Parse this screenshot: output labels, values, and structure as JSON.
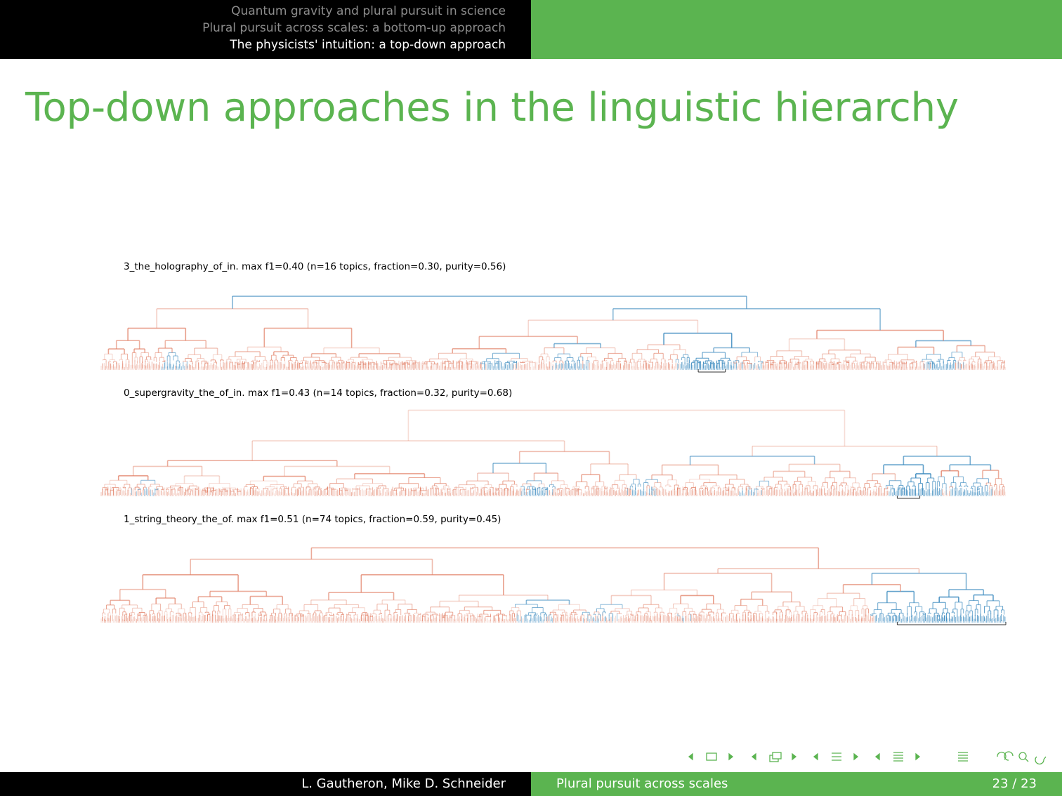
{
  "header": {
    "sections": [
      {
        "label": "Quantum gravity and plural pursuit in science",
        "active": false
      },
      {
        "label": "Plural pursuit across scales: a bottom-up approach",
        "active": false
      },
      {
        "label": "The physicists' intuition: a top-down approach",
        "active": true
      }
    ]
  },
  "slide": {
    "title": "Top-down approaches in the linguistic hierarchy"
  },
  "panels": [
    {
      "title": "3_the_holography_of_in. max f1=0.40 (n=16 topics, fraction=0.30, purity=0.56)",
      "highlight_range": [
        0.66,
        0.69
      ],
      "blue_centers": [
        0.08,
        0.44,
        0.52,
        0.67,
        0.72,
        0.93
      ],
      "blue_weights": [
        0.5,
        0.6,
        0.55,
        1.0,
        0.45,
        0.6
      ]
    },
    {
      "title": "0_supergravity_the_of_in. max f1=0.43 (n=14 topics, fraction=0.32, purity=0.68)",
      "highlight_range": [
        0.88,
        0.905
      ],
      "blue_centers": [
        0.05,
        0.48,
        0.6,
        0.72,
        0.9,
        0.96
      ],
      "blue_weights": [
        0.45,
        0.55,
        0.5,
        0.45,
        1.0,
        0.65
      ]
    },
    {
      "title": "1_string_theory_the_of. max f1=0.51 (n=74 topics, fraction=0.59, purity=0.45)",
      "highlight_range": [
        0.88,
        1.0
      ],
      "blue_centers": [
        0.48,
        0.55,
        0.65,
        0.88,
        0.93,
        0.98
      ],
      "blue_weights": [
        0.55,
        0.5,
        0.4,
        0.8,
        1.0,
        0.85
      ]
    }
  ],
  "colors": {
    "accent_green": "#5bb450",
    "dendro_red": "#e07a5f",
    "dendro_blue": "#3d8bbf"
  },
  "nav_icons": [
    "nav-prev-frame-icon",
    "nav-frame-icon",
    "nav-next-frame-icon",
    "nav-prev-subsection-icon",
    "nav-subsection-icon",
    "nav-next-subsection-icon",
    "nav-prev-section-icon",
    "nav-section-icon",
    "nav-next-section-icon",
    "nav-prev-part-icon",
    "nav-part-icon",
    "nav-next-part-icon",
    "nav-toc-icon",
    "nav-back-icon",
    "nav-search-icon",
    "nav-forward-icon"
  ],
  "footer": {
    "authors": "L. Gautheron, Mike D. Schneider",
    "short_title": "Plural pursuit across scales",
    "page": "23 / 23"
  }
}
